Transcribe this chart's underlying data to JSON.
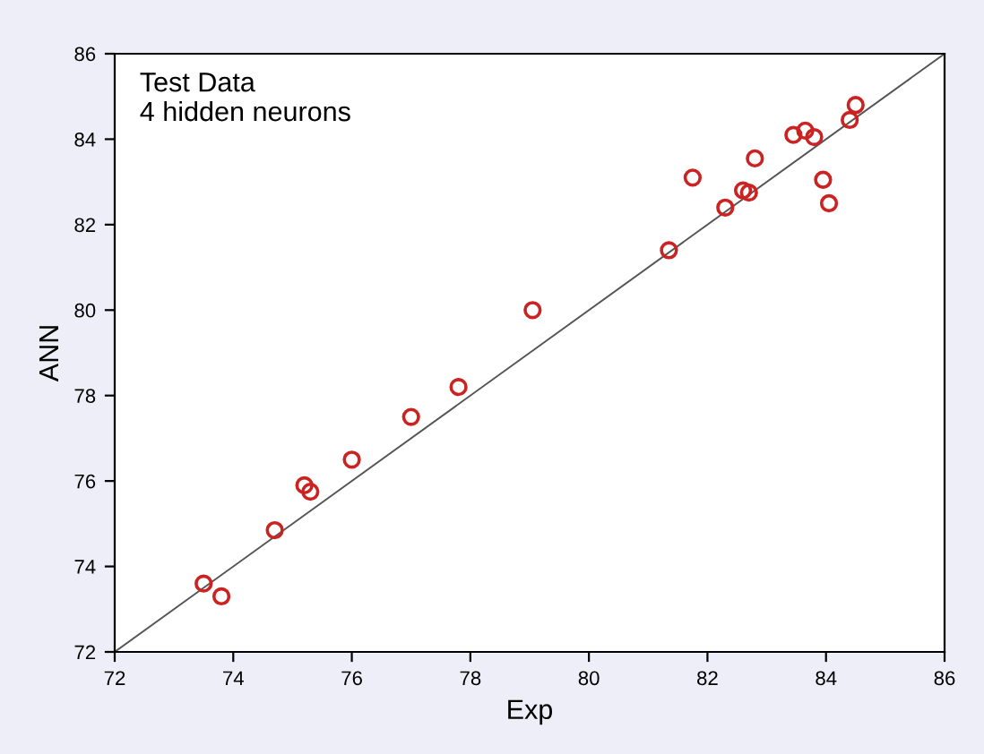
{
  "chart_data": {
    "type": "scatter",
    "xlabel": "Exp",
    "ylabel": "ANN",
    "annotations": [
      "Test Data\n4 hidden neurons"
    ],
    "xlim": [
      72,
      86
    ],
    "ylim": [
      72,
      86
    ],
    "xticks": [
      72,
      74,
      76,
      78,
      80,
      82,
      84,
      86
    ],
    "yticks": [
      72,
      74,
      76,
      78,
      80,
      82,
      84,
      86
    ],
    "grid": false,
    "series": [
      {
        "marker": "circle",
        "color": "#cc2222",
        "x": [
          73.5,
          73.8,
          74.7,
          75.2,
          75.3,
          76.0,
          77.0,
          77.8,
          79.05,
          81.35,
          81.75,
          82.3,
          82.6,
          82.7,
          82.8,
          83.45,
          83.65,
          83.8,
          83.95,
          84.05,
          84.4,
          84.5
        ],
        "values": [
          73.6,
          73.3,
          74.85,
          75.9,
          75.75,
          76.5,
          77.5,
          78.2,
          80.0,
          81.4,
          83.1,
          82.4,
          82.8,
          82.75,
          83.55,
          84.1,
          84.2,
          84.05,
          83.05,
          82.5,
          84.45,
          84.8
        ]
      },
      {
        "type": "line",
        "color": "#555555",
        "x": [
          72,
          86
        ],
        "values": [
          72,
          86
        ]
      }
    ]
  }
}
